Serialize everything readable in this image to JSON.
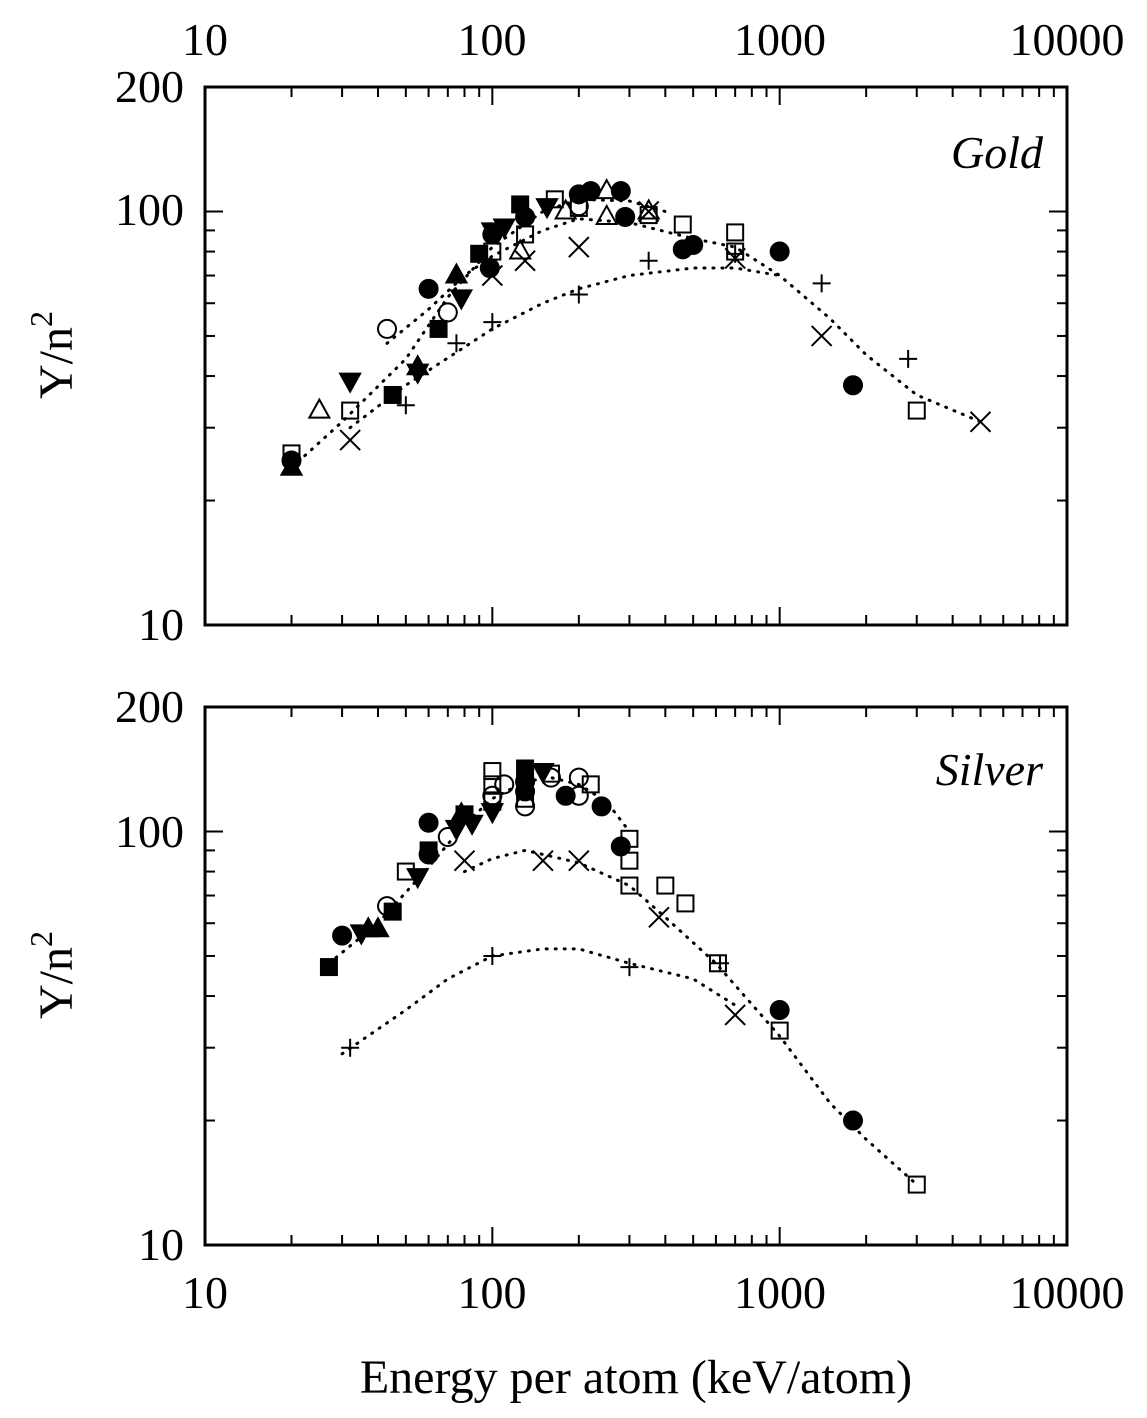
{
  "chart_data": {
    "type": "scatter",
    "x_scale": "log",
    "y_scale": "log",
    "xlim": [
      10,
      10000
    ],
    "ylim": [
      10,
      200
    ],
    "xlabel": "Energy per atom (keV/atom)",
    "ylabel": "Y/n",
    "ylabel_superscript": "2",
    "x_tick_labels": [
      "10",
      "100",
      "1000",
      "10000"
    ],
    "y_tick_labels": [
      "10",
      "100",
      "200"
    ],
    "grid": false,
    "panels": [
      {
        "label": "Gold",
        "series": [
          {
            "marker": "filled-circle",
            "points": [
              [
                20,
                25
              ],
              [
                60,
                65
              ],
              [
                98,
                73
              ],
              [
                100,
                88
              ],
              [
                130,
                97
              ],
              [
                200,
                110
              ],
              [
                220,
                112
              ],
              [
                280,
                112
              ],
              [
                290,
                97
              ],
              [
                460,
                81
              ],
              [
                500,
                83
              ],
              [
                1000,
                80
              ],
              [
                1800,
                38
              ]
            ]
          },
          {
            "marker": "open-circle",
            "points": [
              [
                43,
                52
              ],
              [
                70,
                57
              ],
              [
                200,
                103
              ]
            ]
          },
          {
            "marker": "filled-square",
            "points": [
              [
                45,
                36
              ],
              [
                65,
                52
              ],
              [
                90,
                79
              ],
              [
                125,
                104
              ]
            ]
          },
          {
            "marker": "open-square",
            "points": [
              [
                20,
                26
              ],
              [
                32,
                33
              ],
              [
                100,
                80
              ],
              [
                130,
                88
              ],
              [
                165,
                107
              ],
              [
                200,
                102
              ],
              [
                350,
                98
              ],
              [
                460,
                93
              ],
              [
                700,
                89
              ],
              [
                700,
                80
              ],
              [
                3000,
                33
              ]
            ]
          },
          {
            "marker": "filled-triangle-up",
            "points": [
              [
                20,
                24
              ],
              [
                55,
                42
              ],
              [
                75,
                70
              ]
            ]
          },
          {
            "marker": "open-triangle-up",
            "points": [
              [
                25,
                33
              ],
              [
                125,
                80
              ],
              [
                180,
                100
              ],
              [
                250,
                112
              ],
              [
                250,
                97
              ],
              [
                350,
                100
              ]
            ]
          },
          {
            "marker": "filled-triangle-down",
            "points": [
              [
                32,
                39
              ],
              [
                55,
                41
              ],
              [
                78,
                62
              ],
              [
                100,
                90
              ],
              [
                110,
                92
              ],
              [
                155,
                103
              ]
            ]
          },
          {
            "marker": "cross",
            "points": [
              [
                32,
                28
              ],
              [
                100,
                70
              ],
              [
                130,
                76
              ],
              [
                200,
                82
              ],
              [
                350,
                100
              ],
              [
                700,
                77
              ],
              [
                1400,
                50
              ],
              [
                5000,
                31
              ]
            ]
          },
          {
            "marker": "plus",
            "points": [
              [
                50,
                34
              ],
              [
                75,
                48
              ],
              [
                100,
                54
              ],
              [
                200,
                63
              ],
              [
                350,
                76
              ],
              [
                700,
                79
              ],
              [
                1400,
                67
              ],
              [
                2800,
                44
              ]
            ]
          }
        ],
        "fit_curves": [
          {
            "style": "dotted",
            "x": [
              20,
              30,
              50,
              70,
              100,
              150,
              200,
              300,
              400
            ],
            "y": [
              24,
              31,
              44,
              62,
              82,
              100,
              107,
              106,
              100
            ]
          },
          {
            "style": "dotted",
            "x": [
              43,
              60,
              80,
              100,
              150,
              200,
              300,
              500,
              700,
              1000,
              1500,
              2000,
              3000,
              5000
            ],
            "y": [
              48,
              58,
              70,
              78,
              90,
              96,
              94,
              86,
              82,
              70,
              55,
              45,
              36,
              31
            ]
          },
          {
            "style": "dotted",
            "x": [
              32,
              50,
              80,
              100,
              150,
              200,
              300,
              500,
              700,
              1000
            ],
            "y": [
              30,
              38,
              47,
              52,
              60,
              65,
              70,
              73,
              73,
              70
            ]
          }
        ]
      },
      {
        "label": "Silver",
        "series": [
          {
            "marker": "filled-circle",
            "points": [
              [
                30,
                56
              ],
              [
                60,
                88
              ],
              [
                60,
                105
              ],
              [
                130,
                125
              ],
              [
                130,
                132
              ],
              [
                180,
                122
              ],
              [
                240,
                115
              ],
              [
                280,
                92
              ],
              [
                1000,
                37
              ],
              [
                1800,
                20
              ]
            ]
          },
          {
            "marker": "open-circle",
            "points": [
              [
                43,
                66
              ],
              [
                70,
                97
              ],
              [
                100,
                122
              ],
              [
                110,
                130
              ],
              [
                130,
                115
              ],
              [
                160,
                135
              ],
              [
                200,
                122
              ],
              [
                200,
                135
              ]
            ]
          },
          {
            "marker": "filled-square",
            "points": [
              [
                27,
                47
              ],
              [
                45,
                64
              ],
              [
                60,
                90
              ],
              [
                80,
                110
              ],
              [
                130,
                142
              ]
            ]
          },
          {
            "marker": "open-square",
            "points": [
              [
                50,
                80
              ],
              [
                100,
                118
              ],
              [
                100,
                130
              ],
              [
                100,
                140
              ],
              [
                130,
                120
              ],
              [
                160,
                138
              ],
              [
                220,
                130
              ],
              [
                300,
                96
              ],
              [
                300,
                85
              ],
              [
                300,
                74
              ],
              [
                400,
                74
              ],
              [
                470,
                67
              ],
              [
                610,
                48
              ],
              [
                1000,
                33
              ],
              [
                3000,
                14
              ]
            ]
          },
          {
            "marker": "filled-triangle-up",
            "points": [
              [
                37,
                58
              ],
              [
                40,
                58
              ],
              [
                78,
                110
              ]
            ]
          },
          {
            "marker": "filled-triangle-down",
            "points": [
              [
                35,
                57
              ],
              [
                55,
                78
              ],
              [
                75,
                102
              ],
              [
                85,
                105
              ],
              [
                100,
                112
              ],
              [
                150,
                140
              ]
            ]
          },
          {
            "marker": "cross",
            "points": [
              [
                80,
                85
              ],
              [
                150,
                85
              ],
              [
                200,
                85
              ],
              [
                380,
                62
              ],
              [
                700,
                36
              ]
            ]
          },
          {
            "marker": "plus",
            "points": [
              [
                32,
                30
              ],
              [
                100,
                50
              ],
              [
                300,
                47
              ],
              [
                620,
                48
              ]
            ]
          }
        ],
        "fit_curves": [
          {
            "style": "dotted",
            "x": [
              27,
              40,
              60,
              80,
              100,
              130,
              160,
              200,
              250,
              300
            ],
            "y": [
              48,
              60,
              82,
              104,
              120,
              132,
              135,
              130,
              118,
              100
            ]
          },
          {
            "style": "dotted",
            "x": [
              80,
              100,
              130,
              150,
              200,
              300,
              400,
              600,
              1000,
              1500,
              2000,
              3000
            ],
            "y": [
              80,
              86,
              90,
              88,
              84,
              74,
              62,
              48,
              32,
              22,
              18,
              14
            ]
          },
          {
            "style": "dotted",
            "x": [
              30,
              50,
              70,
              100,
              150,
              200,
              300,
              500,
              700
            ],
            "y": [
              29,
              37,
              44,
              50,
              52,
              52,
              48,
              44,
              38
            ]
          }
        ]
      }
    ]
  }
}
